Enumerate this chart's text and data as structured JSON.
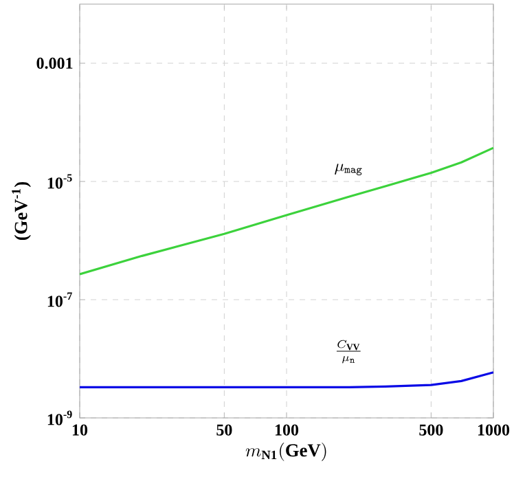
{
  "chart_data": {
    "type": "line",
    "xlabel": "m_{\\mathbf{N1}}\\mathbf{(GeV)}",
    "ylabel": "(GeV$^{-1}$)",
    "log": "xy",
    "grid": true,
    "xlim": [
      10,
      1000
    ],
    "ylim": [
      1e-09,
      0.01
    ],
    "xticks": [
      10,
      50,
      100,
      500,
      1000
    ],
    "yticks": [
      {
        "value": 1e-09,
        "label": "10$^{-9}$"
      },
      {
        "value": 1e-07,
        "label": "10$^{-7}$"
      },
      {
        "value": 1e-05,
        "label": "10$^{-5}$"
      },
      0.001
    ],
    "x": [
      10,
      20,
      50,
      100,
      200,
      300,
      500,
      700,
      1000
    ],
    "series": [
      {
        "color": "#3cd23c",
        "values": [
          2.7e-07,
          5.5e-07,
          1.3e-06,
          2.7e-06,
          5.5e-06,
          8.3e-06,
          1.4e-05,
          2.1e-05,
          3.7e-05
        ]
      },
      {
        "color": "#0a0ae6",
        "values": [
          3.3e-09,
          3.3e-09,
          3.3e-09,
          3.3e-09,
          3.3e-09,
          3.4e-09,
          3.6e-09,
          4.2e-09,
          5.9e-09
        ]
      }
    ],
    "annotations": [
      "\\mu_{\\mathtt{mag}}",
      "\\frac{C_{\\mathbf{VV}}}{\\mu_{\\mathtt{n}}}"
    ]
  }
}
